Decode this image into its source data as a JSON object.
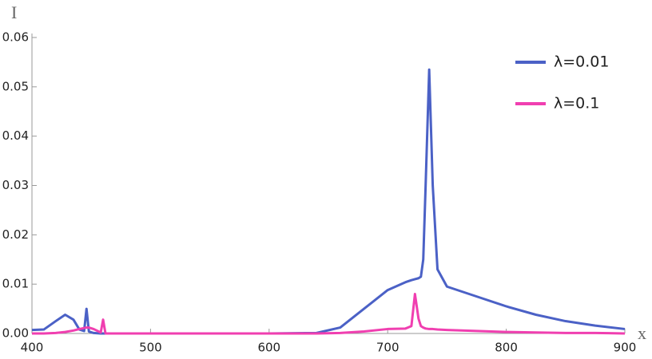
{
  "chart_data": {
    "type": "line",
    "x_label": "x",
    "y_label": "I",
    "x": [
      400,
      410,
      420,
      428,
      435,
      440,
      444,
      446,
      448,
      452,
      458,
      460,
      462,
      470,
      500,
      600,
      640,
      660,
      680,
      700,
      715,
      720,
      723,
      726,
      728,
      730,
      732,
      735,
      738,
      742,
      750,
      775,
      800,
      825,
      850,
      875,
      900
    ],
    "series": [
      {
        "name": "λ=0.01",
        "color": "#4b61c6",
        "values": [
          0.0007,
          0.0008,
          0.0025,
          0.0038,
          0.0028,
          0.0008,
          0.0005,
          0.005,
          0.0004,
          0.0001,
          0,
          0,
          0,
          0,
          0,
          0,
          0.0001,
          0.0012,
          0.005,
          0.0088,
          0.0104,
          0.0108,
          0.011,
          0.0112,
          0.0115,
          0.015,
          0.03,
          0.0535,
          0.03,
          0.013,
          0.0095,
          0.0075,
          0.0055,
          0.0038,
          0.0025,
          0.0016,
          0.0009
        ]
      },
      {
        "name": "λ=0.1",
        "color": "#f03fb0",
        "values": [
          0,
          0,
          0.0001,
          0.0003,
          0.0006,
          0.0009,
          0.0011,
          0.0012,
          0.0012,
          0.0009,
          0.0002,
          0.0028,
          0,
          0,
          0,
          0,
          0,
          0.0001,
          0.0004,
          0.0009,
          0.001,
          0.0015,
          0.008,
          0.003,
          0.0015,
          0.0012,
          0.001,
          0.0009,
          0.0009,
          0.0008,
          0.0007,
          0.0005,
          0.0003,
          0.0002,
          0.0001,
          0.0001,
          0
        ]
      }
    ],
    "xlim": [
      400,
      900
    ],
    "xticks": [
      400,
      500,
      600,
      700,
      800,
      900
    ],
    "ylim": [
      0,
      0.06
    ],
    "yticks": [
      {
        "value": 0,
        "label": "0.00"
      },
      0.01,
      0.02,
      0.03,
      0.04,
      0.05,
      0.06
    ],
    "legend": "top-right"
  }
}
